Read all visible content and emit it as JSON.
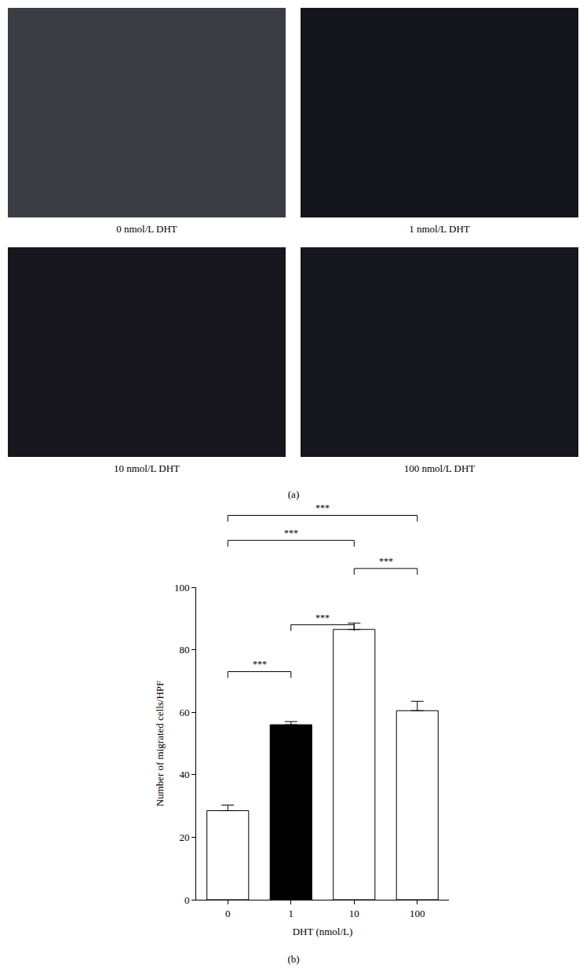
{
  "panel_a": {
    "panel_label": "(a)",
    "images": [
      "0 nmol/L DHT",
      "1 nmol/L DHT",
      "10 nmol/L DHT",
      "100 nmol/L DHT"
    ]
  },
  "chart_data": {
    "type": "bar",
    "panel_label": "(b)",
    "x_label": "DHT (nmol/L)",
    "y_label": "Number of migrated cells/HPF",
    "categories": [
      "0",
      "1",
      "10",
      "100"
    ],
    "values": [
      28.5,
      56,
      86.5,
      60.5
    ],
    "error": [
      1.8,
      1,
      2,
      3
    ],
    "colors": [
      "#ffffff",
      "#000000",
      "#ffffff",
      "#ffffff"
    ],
    "ylim": [
      0,
      100
    ],
    "yticks": [
      0,
      20,
      40,
      60,
      80,
      100
    ],
    "grid": false,
    "annotations": [
      {
        "pair": [
          "0",
          "1"
        ],
        "text": "***"
      },
      {
        "pair": [
          "1",
          "10"
        ],
        "text": "***"
      },
      {
        "pair": [
          "10",
          "100"
        ],
        "text": "***"
      },
      {
        "pair": [
          "0",
          "10"
        ],
        "text": "***"
      },
      {
        "pair": [
          "0",
          "100"
        ],
        "text": "***"
      }
    ]
  }
}
